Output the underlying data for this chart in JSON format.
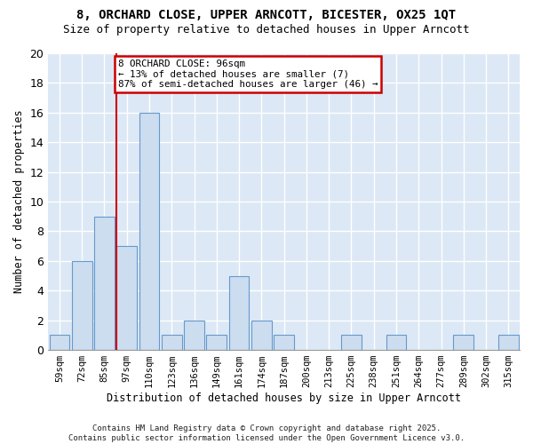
{
  "title": "8, ORCHARD CLOSE, UPPER ARNCOTT, BICESTER, OX25 1QT",
  "subtitle": "Size of property relative to detached houses in Upper Arncott",
  "xlabel": "Distribution of detached houses by size in Upper Arncott",
  "ylabel": "Number of detached properties",
  "categories": [
    "59sqm",
    "72sqm",
    "85sqm",
    "97sqm",
    "110sqm",
    "123sqm",
    "136sqm",
    "149sqm",
    "161sqm",
    "174sqm",
    "187sqm",
    "200sqm",
    "213sqm",
    "225sqm",
    "238sqm",
    "251sqm",
    "264sqm",
    "277sqm",
    "289sqm",
    "302sqm",
    "315sqm"
  ],
  "values": [
    1,
    6,
    9,
    7,
    16,
    1,
    2,
    1,
    5,
    2,
    1,
    0,
    0,
    1,
    0,
    1,
    0,
    0,
    1,
    0,
    1
  ],
  "bar_color": "#ccddf0",
  "bar_edge_color": "#6699cc",
  "background_color": "#dce8f5",
  "grid_color": "#ffffff",
  "vline_x_index": 3,
  "vline_color": "#cc0000",
  "annotation_text": "8 ORCHARD CLOSE: 96sqm\n← 13% of detached houses are smaller (7)\n87% of semi-detached houses are larger (46) →",
  "annotation_box_color": "#ffffff",
  "annotation_box_edge_color": "#cc0000",
  "footer": "Contains HM Land Registry data © Crown copyright and database right 2025.\nContains public sector information licensed under the Open Government Licence v3.0.",
  "fig_bg_color": "#ffffff",
  "ylim": [
    0,
    20
  ],
  "yticks": [
    0,
    2,
    4,
    6,
    8,
    10,
    12,
    14,
    16,
    18,
    20
  ]
}
